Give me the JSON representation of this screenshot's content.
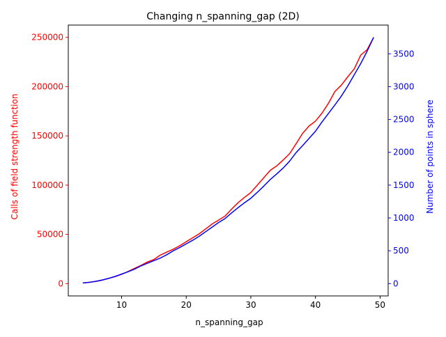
{
  "chart_data": {
    "type": "line",
    "title": "Changing n_spanning_gap (2D)",
    "xlabel": "n_spanning_gap",
    "ylabel_left": "Calls of field strength function",
    "ylabel_right": "Number of points in sphere",
    "xlim": [
      1.75,
      51.25
    ],
    "ylim_left": [
      -12500,
      262500
    ],
    "ylim_right": [
      -187.5,
      3937.5
    ],
    "x_ticks": [
      10,
      20,
      30,
      40,
      50
    ],
    "x_tick_labels": [
      "10",
      "20",
      "30",
      "40",
      "50"
    ],
    "y_left_ticks": [
      0,
      50000,
      100000,
      150000,
      200000,
      250000
    ],
    "y_left_tick_labels": [
      "0",
      "50000",
      "100000",
      "150000",
      "200000",
      "250000"
    ],
    "y_right_ticks": [
      0,
      500,
      1000,
      1500,
      2000,
      2500,
      3000,
      3500
    ],
    "y_right_tick_labels": [
      "0",
      "500",
      "1000",
      "1500",
      "2000",
      "2500",
      "3000",
      "3500"
    ],
    "left_color": "#ff0000",
    "right_color": "#0000ff",
    "grid": false,
    "series": [
      {
        "axis": "left",
        "color": "#ff0000",
        "x": [
          4,
          5,
          6,
          7,
          8,
          9,
          10,
          11,
          12,
          13,
          14,
          15,
          16,
          17,
          18,
          19,
          20,
          21,
          22,
          23,
          24,
          25,
          26,
          27,
          28,
          29,
          30,
          31,
          32,
          33,
          34,
          35,
          36,
          37,
          38,
          39,
          40,
          41,
          42,
          43,
          44,
          45,
          46,
          47,
          48,
          49
        ],
        "values": [
          700,
          1300,
          2200,
          3500,
          5300,
          7100,
          9500,
          12300,
          15500,
          18500,
          22000,
          24500,
          29000,
          32000,
          35000,
          38500,
          42500,
          46500,
          50500,
          55500,
          60500,
          64500,
          68500,
          75500,
          82000,
          87500,
          92500,
          100000,
          107500,
          115000,
          119500,
          125500,
          132000,
          142000,
          152500,
          160000,
          165000,
          173000,
          183000,
          195000,
          201500,
          210000,
          218000,
          232000,
          237500,
          250000
        ]
      },
      {
        "axis": "right",
        "color": "#0000ff",
        "x": [
          4,
          5,
          6,
          7,
          8,
          9,
          10,
          11,
          12,
          13,
          14,
          15,
          16,
          17,
          18,
          19,
          20,
          21,
          22,
          23,
          24,
          25,
          26,
          27,
          28,
          29,
          30,
          31,
          32,
          33,
          34,
          35,
          36,
          37,
          38,
          39,
          40,
          41,
          42,
          43,
          44,
          45,
          46,
          47,
          48,
          49
        ],
        "values": [
          10,
          20,
          35,
          55,
          80,
          110,
          145,
          180,
          220,
          270,
          310,
          350,
          390,
          440,
          500,
          550,
          605,
          660,
          720,
          790,
          860,
          930,
          990,
          1075,
          1155,
          1230,
          1300,
          1390,
          1485,
          1585,
          1670,
          1760,
          1865,
          1995,
          2100,
          2210,
          2320,
          2460,
          2590,
          2720,
          2855,
          3010,
          3180,
          3350,
          3540,
          3750
        ]
      }
    ]
  }
}
